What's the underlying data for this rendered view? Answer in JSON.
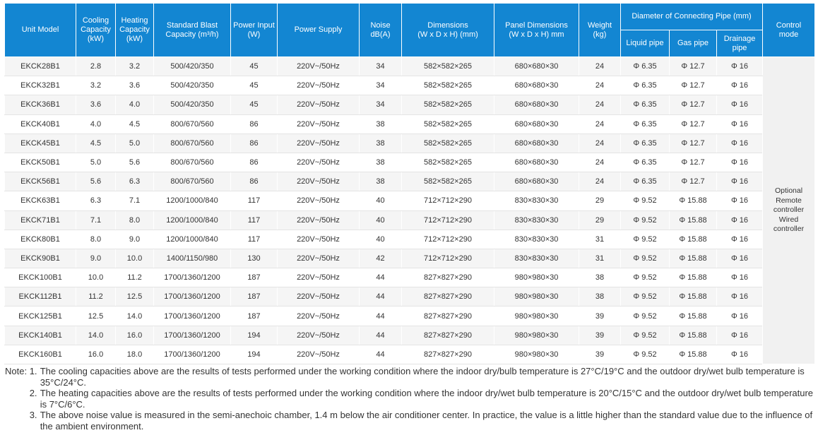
{
  "table": {
    "headers": {
      "unit_model": "Unit Model",
      "cooling": [
        "Cooling",
        "Capacity",
        "(kW)"
      ],
      "heating": [
        "Heating",
        "Capacity",
        "(kW)"
      ],
      "blast": [
        "Standard Blast",
        "Capacity (m³/h)"
      ],
      "power_input": [
        "Power Input",
        "(W)"
      ],
      "power_supply": "Power Supply",
      "noise": [
        "Noise",
        "dB(A)"
      ],
      "dimensions": [
        "Dimensions",
        "(W x D x H) (mm)"
      ],
      "panel": [
        "Panel Dimensions",
        "(W x D x H) mm"
      ],
      "weight": [
        "Weight",
        "(kg)"
      ],
      "pipe_group": "Diameter of Connecting Pipe (mm)",
      "liquid_pipe": "Liquid pipe",
      "gas_pipe": "Gas pipe",
      "drainage_pipe": [
        "Drainage",
        "pipe"
      ],
      "control": [
        "Control",
        "mode"
      ]
    },
    "rows": [
      [
        "EKCK28B1",
        "2.8",
        "3.2",
        "500/420/350",
        "45",
        "220V~/50Hz",
        "34",
        "582×582×265",
        "680×680×30",
        "24",
        "Φ 6.35",
        "Φ 12.7",
        "Φ 16"
      ],
      [
        "EKCK32B1",
        "3.2",
        "3.6",
        "500/420/350",
        "45",
        "220V~/50Hz",
        "34",
        "582×582×265",
        "680×680×30",
        "24",
        "Φ 6.35",
        "Φ 12.7",
        "Φ 16"
      ],
      [
        "EKCK36B1",
        "3.6",
        "4.0",
        "500/420/350",
        "45",
        "220V~/50Hz",
        "34",
        "582×582×265",
        "680×680×30",
        "24",
        "Φ 6.35",
        "Φ 12.7",
        "Φ 16"
      ],
      [
        "EKCK40B1",
        "4.0",
        "4.5",
        "800/670/560",
        "86",
        "220V~/50Hz",
        "38",
        "582×582×265",
        "680×680×30",
        "24",
        "Φ 6.35",
        "Φ 12.7",
        "Φ 16"
      ],
      [
        "EKCK45B1",
        "4.5",
        "5.0",
        "800/670/560",
        "86",
        "220V~/50Hz",
        "38",
        "582×582×265",
        "680×680×30",
        "24",
        "Φ 6.35",
        "Φ 12.7",
        "Φ 16"
      ],
      [
        "EKCK50B1",
        "5.0",
        "5.6",
        "800/670/560",
        "86",
        "220V~/50Hz",
        "38",
        "582×582×265",
        "680×680×30",
        "24",
        "Φ 6.35",
        "Φ 12.7",
        "Φ 16"
      ],
      [
        "EKCK56B1",
        "5.6",
        "6.3",
        "800/670/560",
        "86",
        "220V~/50Hz",
        "38",
        "582×582×265",
        "680×680×30",
        "24",
        "Φ 6.35",
        "Φ 12.7",
        "Φ 16"
      ],
      [
        "EKCK63B1",
        "6.3",
        "7.1",
        "1200/1000/840",
        "117",
        "220V~/50Hz",
        "40",
        "712×712×290",
        "830×830×30",
        "29",
        "Φ 9.52",
        "Φ 15.88",
        "Φ 16"
      ],
      [
        "EKCK71B1",
        "7.1",
        "8.0",
        "1200/1000/840",
        "117",
        "220V~/50Hz",
        "40",
        "712×712×290",
        "830×830×30",
        "29",
        "Φ 9.52",
        "Φ 15.88",
        "Φ 16"
      ],
      [
        "EKCK80B1",
        "8.0",
        "9.0",
        "1200/1000/840",
        "117",
        "220V~/50Hz",
        "40",
        "712×712×290",
        "830×830×30",
        "31",
        "Φ 9.52",
        "Φ 15.88",
        "Φ 16"
      ],
      [
        "EKCK90B1",
        "9.0",
        "10.0",
        "1400/1150/980",
        "130",
        "220V~/50Hz",
        "42",
        "712×712×290",
        "830×830×30",
        "31",
        "Φ 9.52",
        "Φ 15.88",
        "Φ 16"
      ],
      [
        "EKCK100B1",
        "10.0",
        "11.2",
        "1700/1360/1200",
        "187",
        "220V~/50Hz",
        "44",
        "827×827×290",
        "980×980×30",
        "38",
        "Φ 9.52",
        "Φ 15.88",
        "Φ 16"
      ],
      [
        "EKCK112B1",
        "11.2",
        "12.5",
        "1700/1360/1200",
        "187",
        "220V~/50Hz",
        "44",
        "827×827×290",
        "980×980×30",
        "38",
        "Φ 9.52",
        "Φ 15.88",
        "Φ 16"
      ],
      [
        "EKCK125B1",
        "12.5",
        "14.0",
        "1700/1360/1200",
        "187",
        "220V~/50Hz",
        "44",
        "827×827×290",
        "980×980×30",
        "39",
        "Φ 9.52",
        "Φ 15.88",
        "Φ 16"
      ],
      [
        "EKCK140B1",
        "14.0",
        "16.0",
        "1700/1360/1200",
        "194",
        "220V~/50Hz",
        "44",
        "827×827×290",
        "980×980×30",
        "39",
        "Φ 9.52",
        "Φ 15.88",
        "Φ 16"
      ],
      [
        "EKCK160B1",
        "16.0",
        "18.0",
        "1700/1360/1200",
        "194",
        "220V~/50Hz",
        "44",
        "827×827×290",
        "980×980×30",
        "39",
        "Φ 9.52",
        "Φ 15.88",
        "Φ 16"
      ]
    ],
    "control_mode": [
      "Optional",
      "Remote",
      "controller",
      "Wired",
      "controller"
    ]
  },
  "notes": {
    "prefix": "Note: ",
    "items": [
      {
        "num": "1.",
        "text": "The cooling capacities above are the results of tests performed under the working condition where the indoor dry/bulb temperature is 27°C/19°C and the outdoor dry/wet bulb temperature is 35°C/24°C."
      },
      {
        "num": "2.",
        "text": "The heating capacities above are the results of tests performed under the working condition where the indoor dry/wet bulb temperature is 20°C/15°C and the outdoor dry/wet bulb temperature is 7°C/6°C."
      },
      {
        "num": "3.",
        "text": "The above noise value is measured in the semi-anechoic chamber, 1.4 m below the air conditioner center. In practice, the value is a little higher than the standard value due to the influence of the ambient environment."
      }
    ]
  },
  "colors": {
    "header_bg": "#1386d2",
    "header_text": "#ffffff",
    "body_text": "#333333",
    "row_alt": "#f5f5f5"
  }
}
